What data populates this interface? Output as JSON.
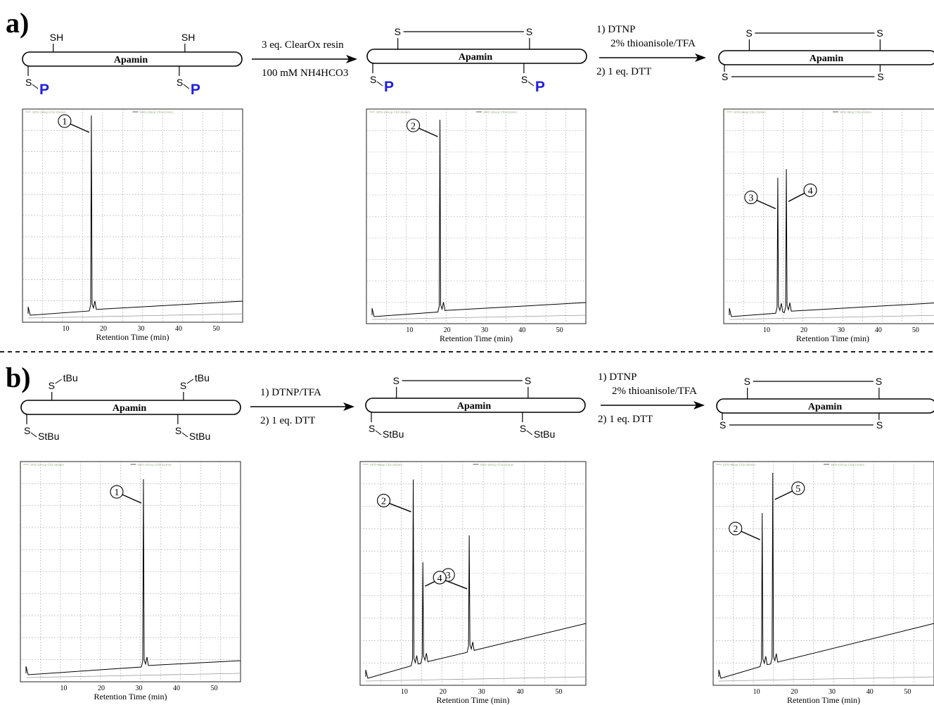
{
  "panels": [
    {
      "id": "a",
      "label": "a)",
      "structures": [
        {
          "name": "Apamin",
          "top": [
            "SH",
            "SH"
          ],
          "bottom": [
            {
              "s": "S",
              "group": "P"
            },
            {
              "s": "S",
              "group": "P"
            }
          ],
          "group_style": "P"
        },
        {
          "name": "Apamin",
          "top_bridge": [
            "S",
            "S"
          ],
          "bottom": [
            {
              "s": "S",
              "group": "P"
            },
            {
              "s": "S",
              "group": "P"
            }
          ],
          "group_style": "P"
        },
        {
          "name": "Apamin",
          "top_bridge": [
            "S",
            "S"
          ],
          "bottom_bridge": [
            "S",
            "S"
          ]
        }
      ],
      "arrows": [
        {
          "above": [
            "3 eq. ClearOx resin"
          ],
          "below": [
            "100 mM NH4HCO3"
          ]
        },
        {
          "above": [
            "1) DTNP",
            "2% thioanisole/TFA"
          ],
          "below": [
            "2) 1 eq. DTT"
          ]
        }
      ],
      "chromatograms": [
        {
          "xlabel": "Retention Time (min)",
          "ticks": [
            "10",
            "20",
            "30",
            "40",
            "50"
          ],
          "legend": [
            "SFD-136cp Ch2-254nm",
            "SFD-136cp Ch3-214nm"
          ],
          "peaks": [
            {
              "label": "1",
              "rt": 16.8,
              "height": 0.97
            }
          ]
        },
        {
          "xlabel": "Retention Time (min)",
          "ticks": [
            "10",
            "20",
            "30",
            "40",
            "50"
          ],
          "legend": [
            "SFD-10Acp Ch2-254nm",
            "SFD-10Acp Ch3-214nm"
          ],
          "peaks": [
            {
              "label": "2",
              "rt": 18.1,
              "height": 0.95
            }
          ]
        },
        {
          "xlabel": "Retention Time (min)",
          "ticks": [
            "10",
            "20",
            "30",
            "40",
            "50"
          ],
          "legend": [
            "SFD-96wp Ch2-254nm",
            "SFD-96cp Ch3-214nm"
          ],
          "peaks": [
            {
              "label": "3",
              "rt": 13.0,
              "height": 0.68
            },
            {
              "label": "4",
              "rt": 15.3,
              "height": 0.72
            }
          ]
        }
      ]
    },
    {
      "id": "b",
      "label": "b)",
      "structures": [
        {
          "name": "Apamin",
          "top": [
            "S",
            "S"
          ],
          "top_group": "tBu",
          "bottom": [
            {
              "s": "S",
              "group": "StBu"
            },
            {
              "s": "S",
              "group": "StBu"
            }
          ]
        },
        {
          "name": "Apamin",
          "top_bridge": [
            "S",
            "S"
          ],
          "bottom": [
            {
              "s": "S",
              "group": "StBu"
            },
            {
              "s": "S",
              "group": "StBu"
            }
          ]
        },
        {
          "name": "Apamin",
          "top_bridge": [
            "S",
            "S"
          ],
          "bottom_bridge": [
            "S",
            "S"
          ]
        }
      ],
      "arrows": [
        {
          "above": [
            "1) DTNP/TFA"
          ],
          "below": [
            "2) 1 eq. DTT"
          ]
        },
        {
          "above": [
            "1) DTNP",
            "2% thioanisole/TFA"
          ],
          "below": [
            "2) 1 eq. DTT"
          ]
        }
      ],
      "chromatograms": [
        {
          "xlabel": "Retention Time (min)",
          "ticks": [
            "10",
            "20",
            "30",
            "40",
            "50"
          ],
          "legend": [
            "SFD-10Acp Ch2-254nm",
            "SFD-10Acp Ch3-214nm"
          ],
          "peaks": [
            {
              "label": "1",
              "rt": 31.2,
              "height": 0.92
            }
          ]
        },
        {
          "xlabel": "Retention Time (min)",
          "ticks": [
            "10",
            "20",
            "30",
            "40",
            "50"
          ],
          "legend": [
            "SFD-96wp Ch2-254nm",
            "SFD-10Acp Ch3-214nm"
          ],
          "peaks": [
            {
              "label": "2",
              "rt": 12.3,
              "height": 0.92
            },
            {
              "label": "3",
              "rt": 14.8,
              "height": 0.55
            },
            {
              "label": "4",
              "rt": 26.8,
              "height": 0.67
            }
          ]
        },
        {
          "xlabel": "Retention Time (min)",
          "ticks": [
            "10",
            "20",
            "30",
            "40",
            "50"
          ],
          "legend": [
            "SFD-96wp Ch2-254nm",
            "SFD-10Acp Ch3-214nm"
          ],
          "peaks": [
            {
              "label": "2",
              "rt": 11.5,
              "height": 0.77
            },
            {
              "label": "5",
              "rt": 14.3,
              "height": 0.95
            }
          ]
        }
      ]
    }
  ]
}
